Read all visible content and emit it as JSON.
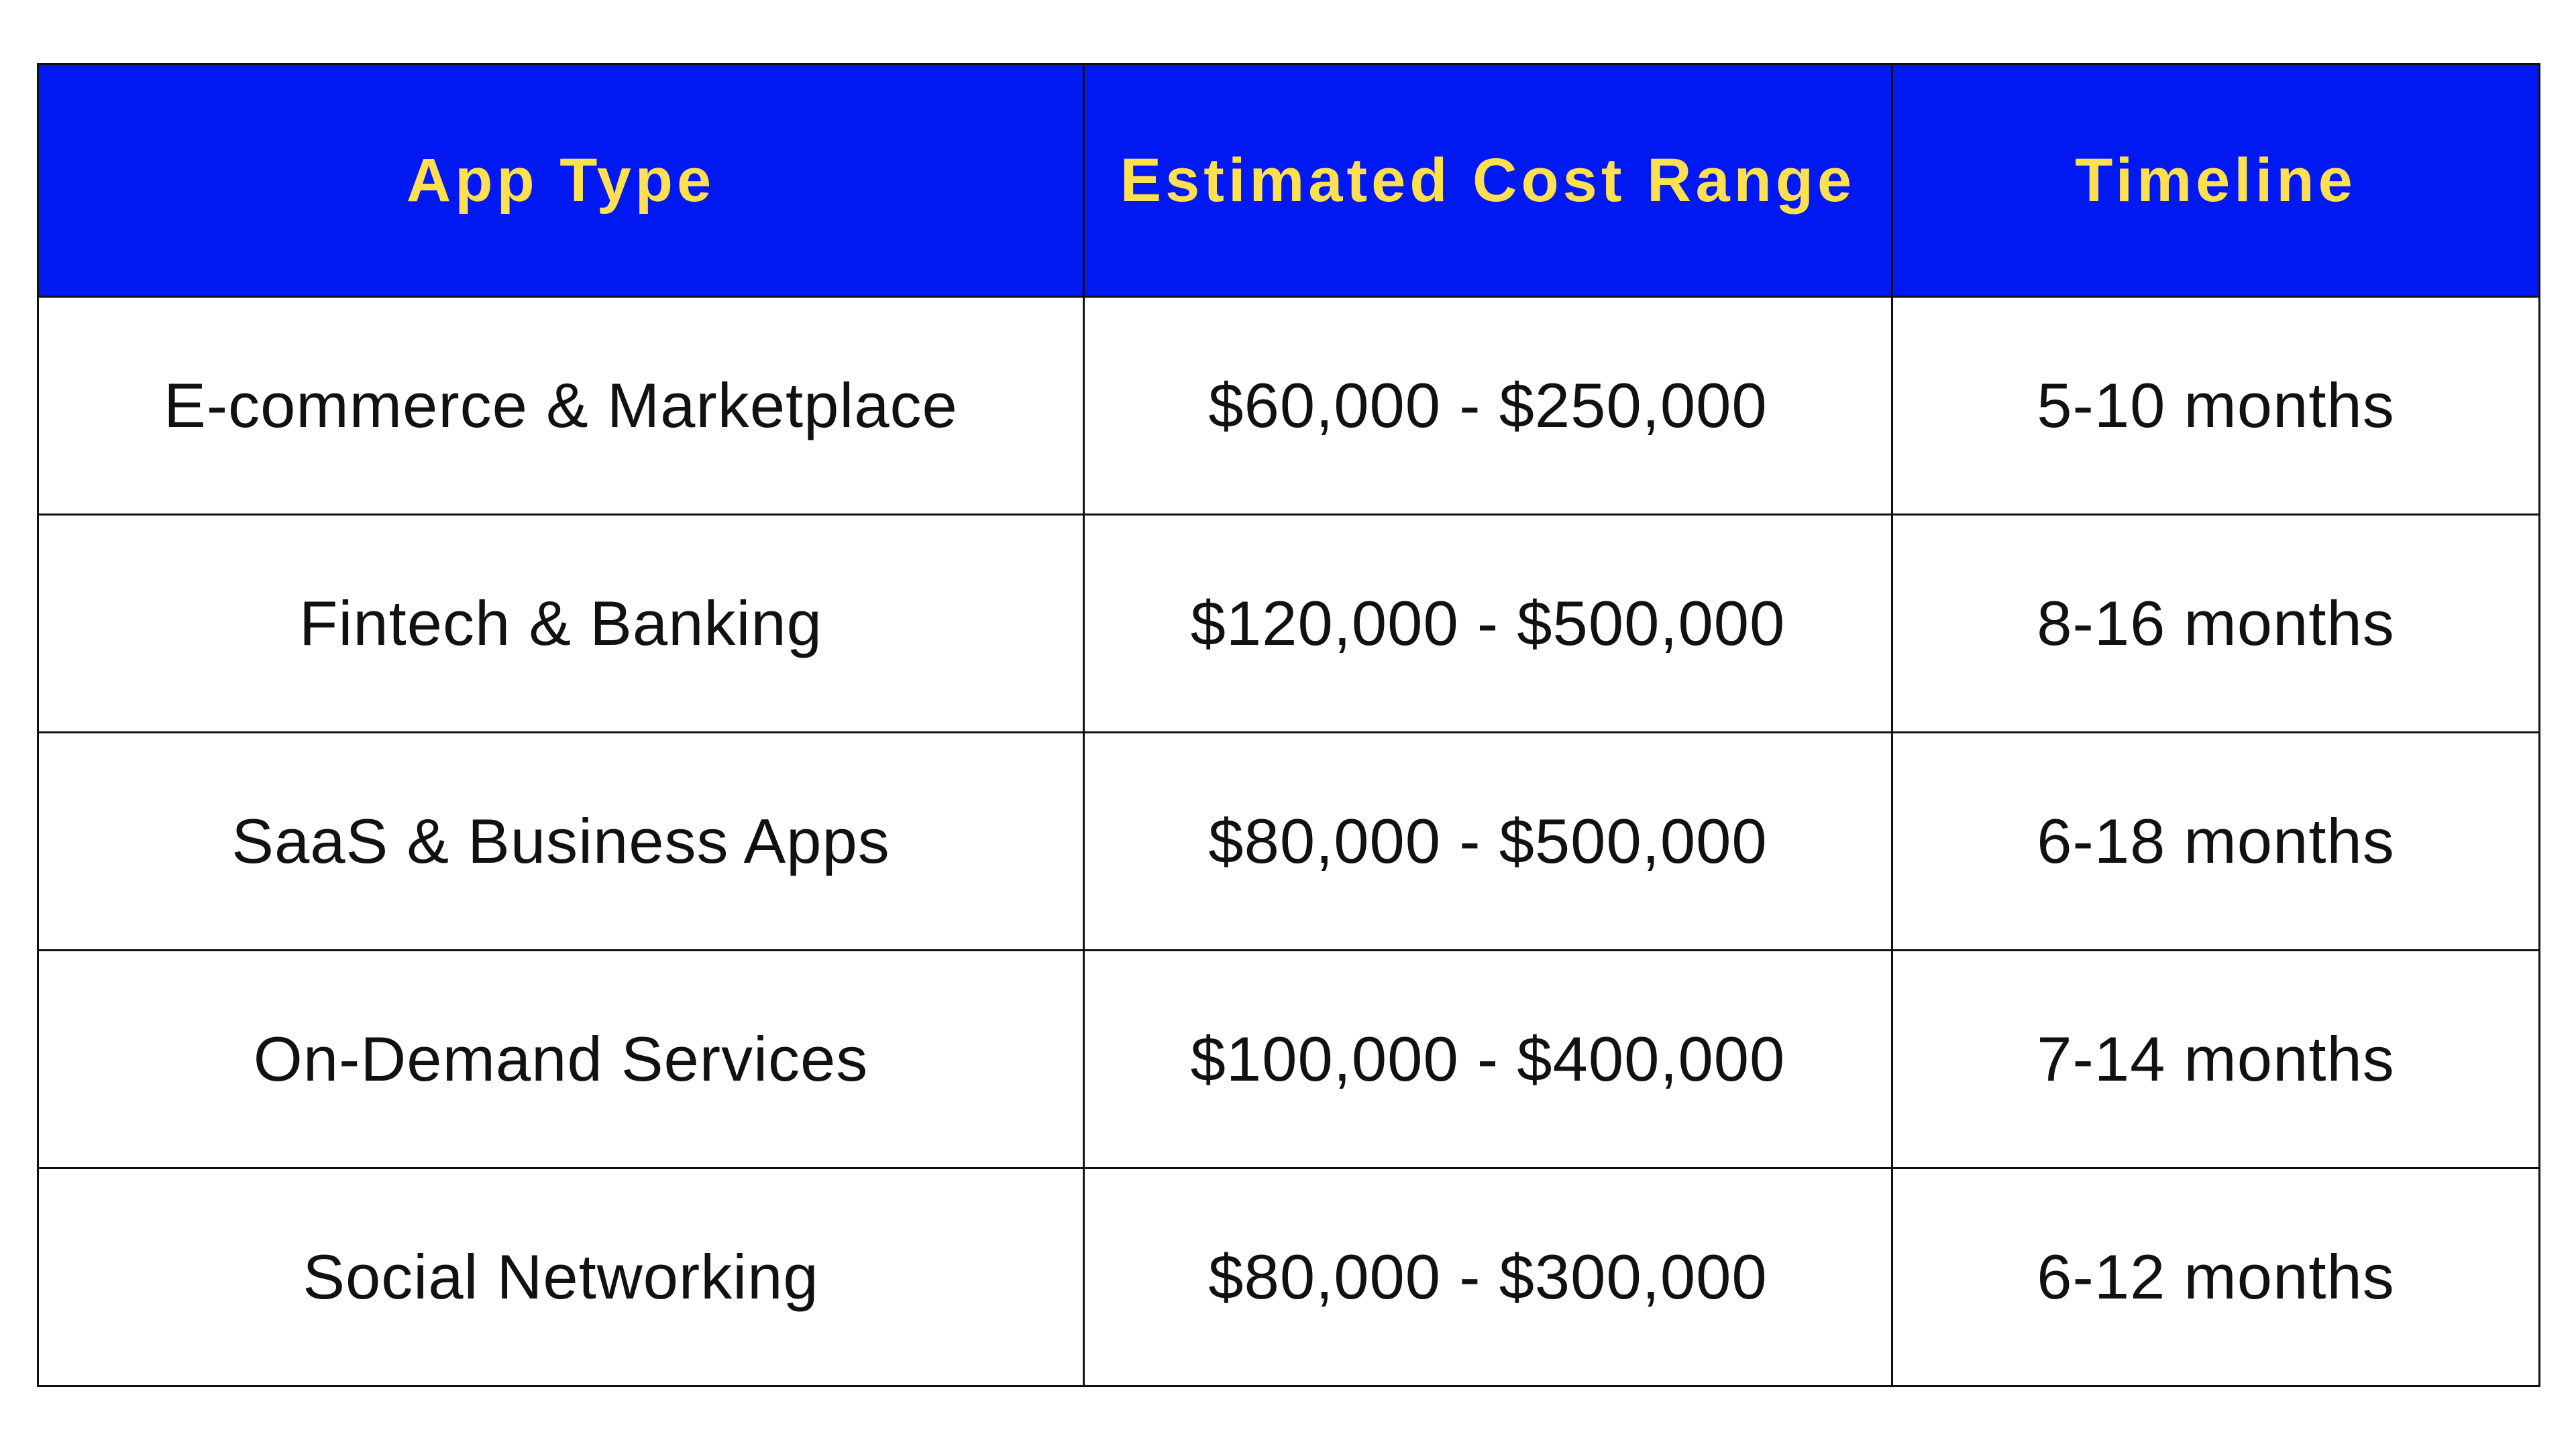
{
  "table": {
    "headers": [
      "App Type",
      "Estimated Cost Range",
      "Timeline"
    ],
    "rows": [
      [
        "E-commerce & Marketplace",
        "$60,000 - $250,000",
        "5-10 months"
      ],
      [
        "Fintech & Banking",
        "$120,000 - $500,000",
        "8-16 months"
      ],
      [
        "SaaS & Business Apps",
        "$80,000 - $500,000",
        "6-18 months"
      ],
      [
        "On-Demand Services",
        "$100,000 - $400,000",
        "7-14 months"
      ],
      [
        "Social Networking",
        "$80,000 - $300,000",
        "6-12 months"
      ]
    ],
    "colors": {
      "header_bg": "#0019f2",
      "header_text": "#ffe14f",
      "body_text": "#111111"
    }
  }
}
